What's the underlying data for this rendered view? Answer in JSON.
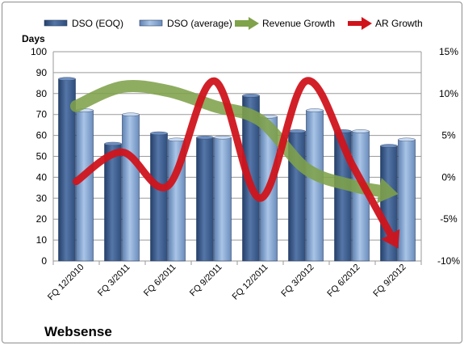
{
  "chart_data": {
    "type": "bar",
    "title": "Websense",
    "ylabel": "Days",
    "categories": [
      "FQ 12/2010",
      "FQ 3/2011",
      "FQ 6/2011",
      "FQ 9/2011",
      "FQ 12/2011",
      "FQ 3/2012",
      "FQ 6/2012",
      "FQ 9/2012"
    ],
    "ylim": [
      0,
      100
    ],
    "y_ticks": [
      "0",
      "10",
      "20",
      "30",
      "40",
      "50",
      "60",
      "70",
      "80",
      "90",
      "100"
    ],
    "y2lim": [
      -10,
      15
    ],
    "y2_ticks": [
      "-10%",
      "-5%",
      "0%",
      "5%",
      "10%",
      "15%"
    ],
    "grid": true,
    "legend_position": "top",
    "series": [
      {
        "name": "DSO (EOQ)",
        "type": "bar",
        "axis": "left",
        "color": "#3d5f93",
        "values": [
          87,
          56,
          61,
          59,
          79,
          62,
          62,
          55
        ]
      },
      {
        "name": "DSO (average)",
        "type": "bar",
        "axis": "left",
        "color": "#7d9fcb",
        "values": [
          72,
          70,
          58,
          59,
          69,
          72,
          62,
          58
        ]
      },
      {
        "name": "Revenue Growth",
        "type": "line",
        "axis": "right",
        "color": "#7fa24a",
        "values": [
          8.5,
          10.8,
          10.3,
          8.5,
          6.8,
          1.0,
          -1.0,
          -2.0
        ]
      },
      {
        "name": "AR Growth",
        "type": "line",
        "axis": "right",
        "color": "#d0141c",
        "values": [
          -0.5,
          3.0,
          -1.0,
          11.5,
          -2.5,
          11.5,
          1.5,
          -8.5
        ]
      }
    ]
  }
}
